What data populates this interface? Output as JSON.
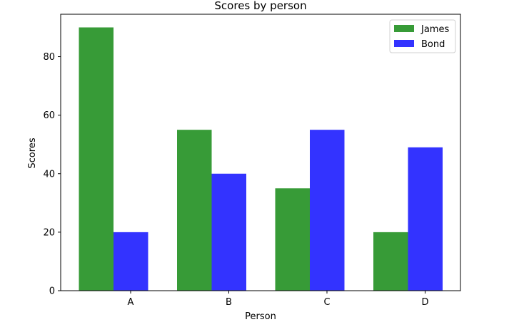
{
  "chart_data": {
    "type": "bar",
    "title": "Scores by person",
    "xlabel": "Person",
    "ylabel": "Scores",
    "categories": [
      "A",
      "B",
      "C",
      "D"
    ],
    "series": [
      {
        "name": "James",
        "values": [
          90,
          55,
          35,
          20
        ],
        "color": "#379b37"
      },
      {
        "name": "Bond",
        "values": [
          20,
          40,
          55,
          49
        ],
        "color": "#3333ff"
      }
    ],
    "ylim": [
      0,
      94.5
    ],
    "yticks": [
      0,
      20,
      40,
      60,
      80
    ],
    "grid": false,
    "legend": "top-right"
  }
}
